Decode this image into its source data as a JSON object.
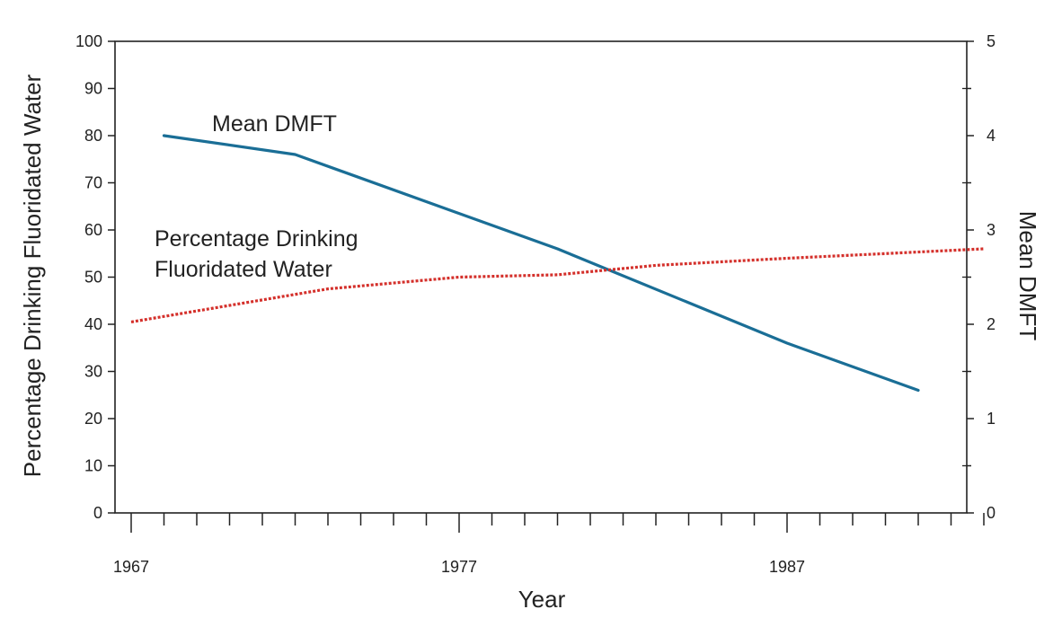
{
  "chart_data": {
    "type": "line",
    "xlabel": "Year",
    "ylabel_left": "Percentage Drinking Fluoridated Water",
    "ylabel_right": "Mean DMFT",
    "x_ticks": [
      1967,
      1977,
      1987
    ],
    "xlim": [
      1967,
      1993.5
    ],
    "ylim_left": [
      0,
      100
    ],
    "yticks_left": [
      "0",
      "10",
      "20",
      "30",
      "40",
      "50",
      "60",
      "70",
      "80",
      "90",
      "100"
    ],
    "ylim_right": [
      0,
      5
    ],
    "yticks_right": [
      "0",
      "1",
      "2",
      "3",
      "4",
      "5"
    ],
    "annotations": {
      "dmft": "Mean DMFT",
      "fluoride_line1": "Percentage Drinking",
      "fluoride_line2": "Fluoridated Water"
    },
    "series": [
      {
        "name": "Mean DMFT",
        "axis": "right",
        "color": "#1a6e96",
        "style": "solid",
        "x": [
          1968,
          1972,
          1980,
          1987,
          1991
        ],
        "values": [
          4.0,
          3.8,
          2.8,
          1.8,
          1.3
        ]
      },
      {
        "name": "Percentage Drinking Fluoridated Water",
        "axis": "left",
        "color": "#d4302b",
        "style": "dotted",
        "x": [
          1967,
          1970,
          1973,
          1977,
          1980,
          1983,
          1987,
          1990,
          1993
        ],
        "values": [
          40.5,
          44,
          47.5,
          50,
          50.5,
          52.5,
          54,
          55,
          56
        ]
      }
    ]
  }
}
